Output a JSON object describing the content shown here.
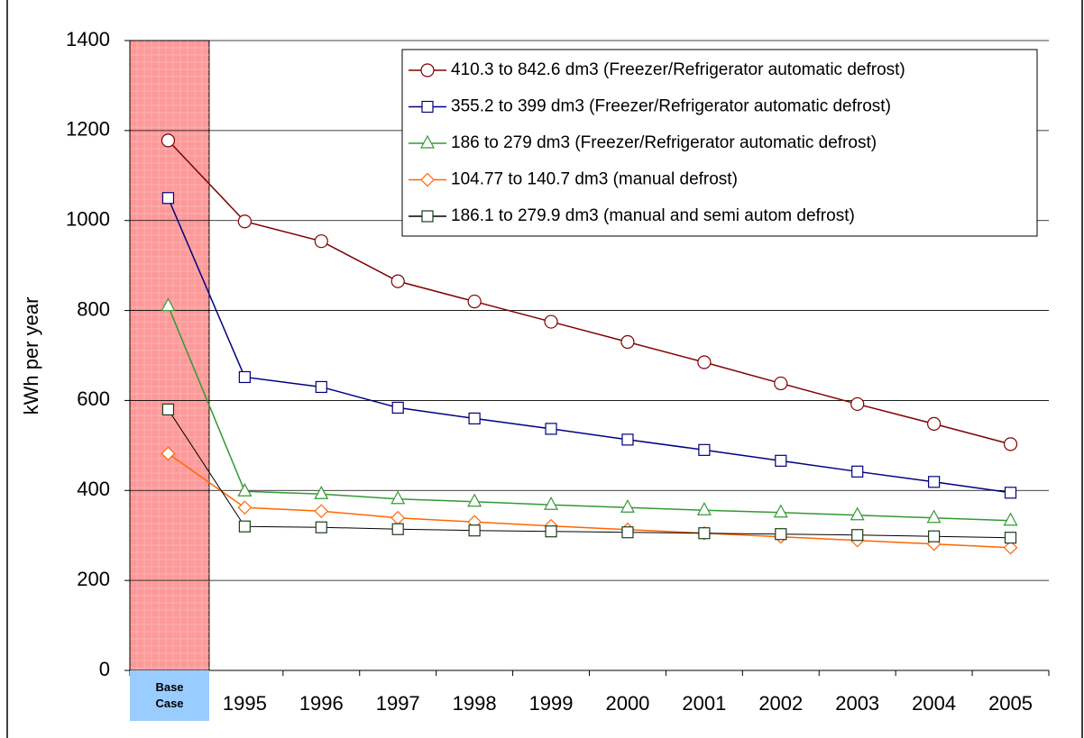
{
  "chart_data": {
    "type": "line",
    "y_label": "kWh per year",
    "categories": [
      "Base Case",
      "1995",
      "1996",
      "1997",
      "1998",
      "1999",
      "2000",
      "2001",
      "2002",
      "2003",
      "2004",
      "2005"
    ],
    "series": [
      {
        "name": "410.3 to 842.6 dm3 (Freezer/Refrigerator automatic defrost)",
        "color": "#800000",
        "marker": "circle",
        "values": [
          1178,
          998,
          954,
          865,
          820,
          775,
          730,
          685,
          638,
          592,
          548,
          503
        ]
      },
      {
        "name": "355.2 to 399 dm3 (Freezer/Refrigerator automatic defrost)",
        "color": "#000080",
        "marker": "square",
        "values": [
          1050,
          652,
          630,
          584,
          560,
          537,
          513,
          490,
          466,
          442,
          419,
          395
        ]
      },
      {
        "name": "186 to 279 dm3 (Freezer/Refrigerator automatic defrost)",
        "color": "#339933",
        "marker": "triangle",
        "values": [
          810,
          398,
          392,
          381,
          375,
          368,
          362,
          356,
          351,
          345,
          339,
          333
        ]
      },
      {
        "name": "104.77 to 140.7 dm3 (manual defrost)",
        "color": "#FF6600",
        "marker": "diamond",
        "values": [
          482,
          362,
          354,
          339,
          330,
          321,
          313,
          305,
          297,
          289,
          281,
          273
        ]
      },
      {
        "name": "186.1 to 279.9 dm3 (manual and semi autom defrost)",
        "color": "#1a3d1a",
        "marker": "square",
        "values": [
          580,
          320,
          318,
          314,
          311,
          309,
          307,
          305,
          303,
          301,
          298,
          295
        ]
      }
    ],
    "ylim": [
      0,
      1400
    ],
    "yticks": [
      0,
      200,
      400,
      600,
      800,
      1000,
      1200,
      1400
    ],
    "grid": true,
    "highlight_color": "#FF9999",
    "highlight_label_color": "#99CCFF"
  }
}
